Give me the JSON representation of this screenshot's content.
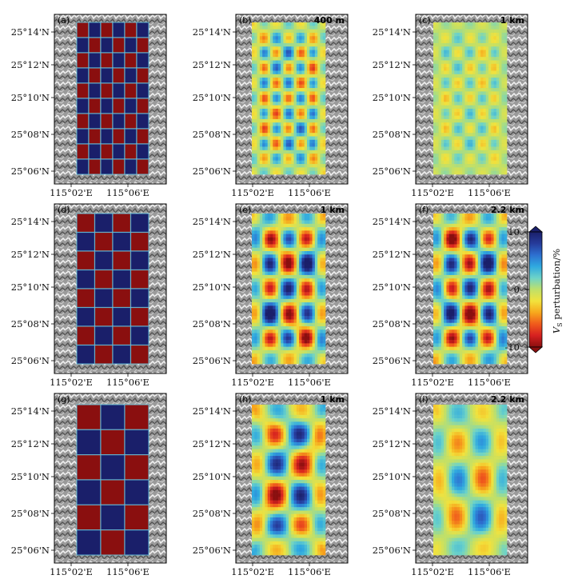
{
  "chart_data": {
    "type": "heatmap",
    "title": "",
    "xlabel": "",
    "ylabel": "",
    "x_tick_labels": [
      "115°02'E",
      "115°06'E"
    ],
    "y_tick_labels": [
      "25°14'N",
      "25°12'N",
      "25°10'N",
      "25°08'N",
      "25°06'N"
    ],
    "colorbar": {
      "label_main": "V",
      "label_sub": "S",
      "label_rest": " perturbation/%",
      "min": -10,
      "max": 10,
      "ticks": [
        "10",
        "0",
        "-10"
      ],
      "tick_values": [
        10,
        0,
        -10
      ],
      "colors": [
        "#8a0f0f",
        "#d62020",
        "#f05a1c",
        "#f7a81c",
        "#f2e23c",
        "#bfe06a",
        "#6dd3c8",
        "#2fa9e0",
        "#2d6fd0",
        "#263b9a",
        "#1a1f6a"
      ]
    },
    "panels": [
      {
        "id": "a",
        "label": "(a)",
        "depth": "",
        "kind": "checker",
        "cols": 6,
        "rows": 10,
        "amplitude": 10
      },
      {
        "id": "b",
        "label": "(b)",
        "depth": "400 m",
        "kind": "recovered",
        "cols": 6,
        "rows": 10,
        "amplitude": 6
      },
      {
        "id": "c",
        "label": "(c)",
        "depth": "1 km",
        "kind": "recovered",
        "cols": 6,
        "rows": 10,
        "amplitude": 3
      },
      {
        "id": "d",
        "label": "(d)",
        "depth": "",
        "kind": "checker",
        "cols": 4,
        "rows": 8,
        "amplitude": 10
      },
      {
        "id": "e",
        "label": "(e)",
        "depth": "1 km",
        "kind": "recovered",
        "cols": 4,
        "rows": 6,
        "amplitude": 10
      },
      {
        "id": "f",
        "label": "(f)",
        "depth": "2.2 km",
        "kind": "recovered",
        "cols": 4,
        "rows": 6,
        "amplitude": 10
      },
      {
        "id": "g",
        "label": "(g)",
        "depth": "",
        "kind": "checker",
        "cols": 3,
        "rows": 6,
        "amplitude": 10
      },
      {
        "id": "h",
        "label": "(h)",
        "depth": "1 km",
        "kind": "recovered",
        "cols": 3,
        "rows": 5,
        "amplitude": 9
      },
      {
        "id": "i",
        "label": "(i)",
        "depth": "2.2 km",
        "kind": "recovered",
        "cols": 3,
        "rows": 4,
        "amplitude": 6
      }
    ]
  }
}
